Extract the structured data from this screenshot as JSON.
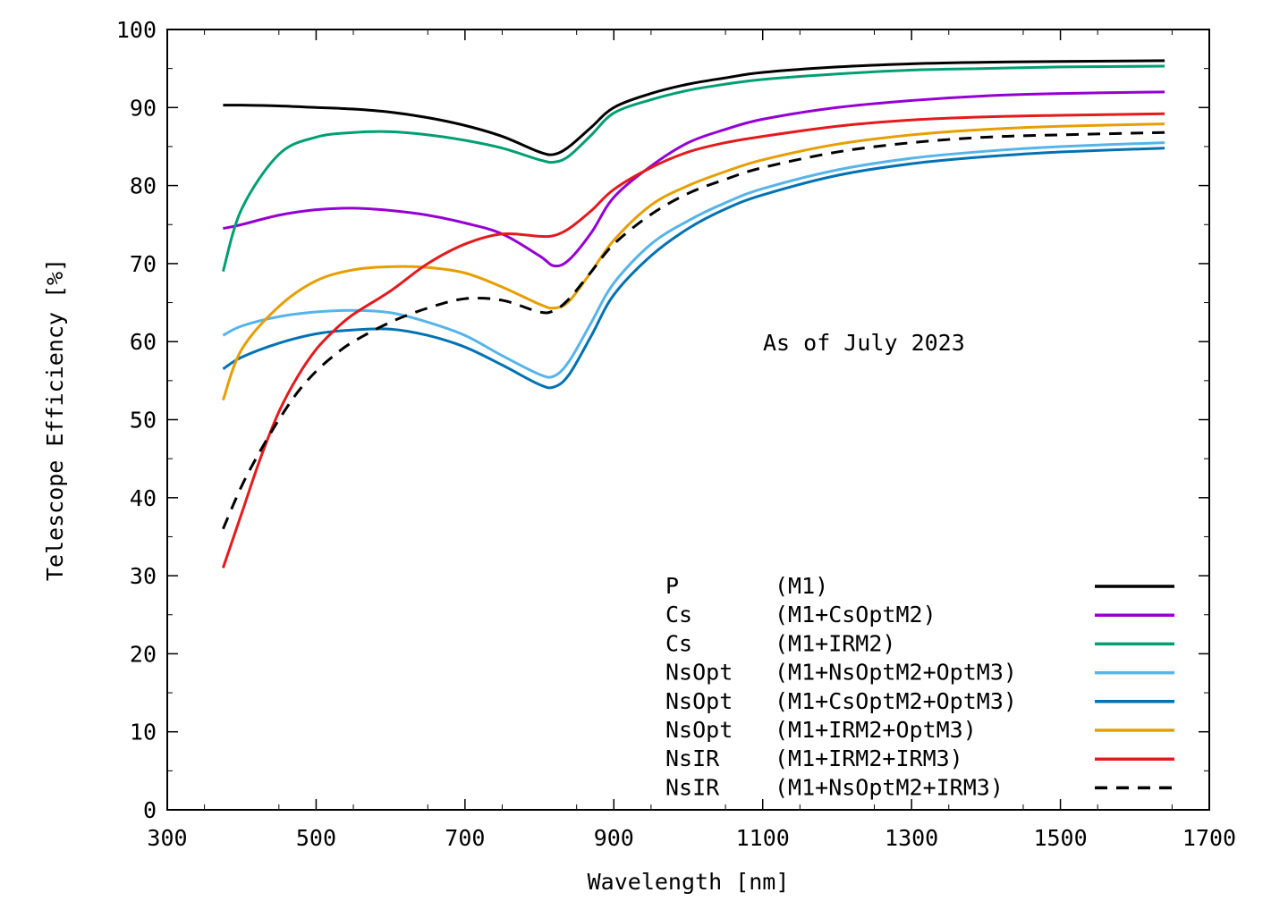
{
  "chart_data": {
    "type": "line",
    "xlabel": "Wavelength [nm]",
    "ylabel": "Telescope Efficiency [%]",
    "xlim": [
      300,
      1700
    ],
    "ylim": [
      0,
      100
    ],
    "xticks": [
      "300",
      "500",
      "700",
      "900",
      "1100",
      "1300",
      "1500",
      "1700"
    ],
    "yticks": [
      "0",
      "10",
      "20",
      "30",
      "40",
      "50",
      "60",
      "70",
      "80",
      "90",
      "100"
    ],
    "annotation": "As of July 2023",
    "legend_position": "bottom-right",
    "grid": false,
    "series": [
      {
        "name": "P",
        "config": "(M1)",
        "color": "#000000",
        "dash": "solid",
        "x": [
          375,
          400,
          450,
          500,
          550,
          600,
          650,
          700,
          750,
          800,
          820,
          840,
          870,
          900,
          950,
          1000,
          1050,
          1100,
          1200,
          1300,
          1400,
          1500,
          1640
        ],
        "y": [
          90.3,
          90.3,
          90.2,
          90.0,
          89.8,
          89.4,
          88.7,
          87.7,
          86.3,
          84.3,
          84.0,
          85.0,
          87.5,
          90.0,
          91.8,
          93.0,
          93.8,
          94.5,
          95.2,
          95.6,
          95.8,
          95.9,
          96.0
        ]
      },
      {
        "name": "Cs",
        "config": "(M1+CsOptM2)",
        "color": "#9400d3",
        "dash": "solid",
        "x": [
          375,
          400,
          450,
          500,
          550,
          600,
          650,
          700,
          750,
          800,
          820,
          840,
          870,
          900,
          950,
          1000,
          1050,
          1100,
          1200,
          1300,
          1400,
          1500,
          1640
        ],
        "y": [
          74.5,
          75.0,
          76.2,
          76.9,
          77.1,
          76.8,
          76.2,
          75.2,
          73.8,
          71.0,
          69.7,
          70.5,
          74.0,
          78.5,
          82.5,
          85.5,
          87.2,
          88.5,
          90.0,
          90.9,
          91.5,
          91.8,
          92.0
        ]
      },
      {
        "name": "Cs",
        "config": "(M1+IRM2)",
        "color": "#009e73",
        "dash": "solid",
        "x": [
          375,
          400,
          450,
          500,
          550,
          600,
          650,
          700,
          750,
          800,
          820,
          840,
          870,
          900,
          950,
          1000,
          1050,
          1100,
          1200,
          1300,
          1400,
          1500,
          1640
        ],
        "y": [
          69.0,
          77.0,
          84.0,
          86.2,
          86.8,
          86.9,
          86.5,
          85.8,
          84.8,
          83.3,
          83.0,
          83.8,
          86.5,
          89.3,
          91.0,
          92.2,
          93.0,
          93.6,
          94.3,
          94.8,
          95.0,
          95.2,
          95.3
        ]
      },
      {
        "name": "NsOpt",
        "config": "(M1+NsOptM2+OptM3)",
        "color": "#56b4e9",
        "dash": "solid",
        "x": [
          375,
          400,
          450,
          500,
          550,
          600,
          650,
          700,
          750,
          800,
          820,
          840,
          870,
          900,
          950,
          1000,
          1050,
          1100,
          1200,
          1300,
          1400,
          1500,
          1640
        ],
        "y": [
          60.8,
          62.0,
          63.2,
          63.8,
          64.0,
          63.7,
          62.5,
          60.8,
          58.2,
          55.8,
          55.6,
          57.5,
          62.5,
          67.5,
          72.5,
          75.5,
          77.8,
          79.6,
          82.0,
          83.5,
          84.4,
          85.0,
          85.5
        ]
      },
      {
        "name": "NsOpt",
        "config": "(M1+CsOptM2+OptM3)",
        "color": "#0072b2",
        "dash": "solid",
        "x": [
          375,
          400,
          450,
          500,
          550,
          600,
          650,
          700,
          750,
          800,
          820,
          840,
          870,
          900,
          950,
          1000,
          1050,
          1100,
          1200,
          1300,
          1400,
          1500,
          1640
        ],
        "y": [
          56.5,
          58.0,
          59.8,
          61.0,
          61.5,
          61.6,
          60.8,
          59.3,
          57.0,
          54.5,
          54.2,
          55.8,
          60.8,
          66.0,
          71.0,
          74.5,
          77.0,
          78.8,
          81.3,
          82.8,
          83.7,
          84.3,
          84.8
        ]
      },
      {
        "name": "NsOpt",
        "config": "(M1+IRM2+OptM3)",
        "color": "#e69f00",
        "dash": "solid",
        "x": [
          375,
          400,
          450,
          500,
          550,
          600,
          650,
          700,
          750,
          800,
          820,
          840,
          870,
          900,
          950,
          1000,
          1050,
          1100,
          1200,
          1300,
          1400,
          1500,
          1640
        ],
        "y": [
          52.5,
          59.0,
          64.5,
          67.8,
          69.2,
          69.6,
          69.5,
          68.8,
          67.0,
          64.8,
          64.3,
          65.2,
          69.0,
          73.0,
          77.5,
          80.0,
          81.8,
          83.3,
          85.3,
          86.5,
          87.2,
          87.6,
          87.9
        ]
      },
      {
        "name": "NsIR",
        "config": "(M1+IRM2+IRM3)",
        "color": "#e41a1c",
        "dash": "solid",
        "x": [
          375,
          400,
          425,
          450,
          475,
          500,
          525,
          550,
          600,
          650,
          700,
          750,
          800,
          820,
          840,
          870,
          900,
          950,
          1000,
          1050,
          1100,
          1200,
          1300,
          1400,
          1500,
          1640
        ],
        "y": [
          31.0,
          38.0,
          45.0,
          51.0,
          55.5,
          59.0,
          61.5,
          63.5,
          66.5,
          70.0,
          72.5,
          73.8,
          73.5,
          73.6,
          74.5,
          76.8,
          79.5,
          82.3,
          84.3,
          85.5,
          86.3,
          87.6,
          88.4,
          88.8,
          89.0,
          89.2
        ]
      },
      {
        "name": "NsIR",
        "config": "(M1+NsOptM2+IRM3)",
        "color": "#000000",
        "dash": "dashed",
        "x": [
          375,
          400,
          425,
          450,
          475,
          500,
          525,
          550,
          600,
          650,
          700,
          750,
          800,
          820,
          840,
          870,
          900,
          950,
          1000,
          1050,
          1100,
          1200,
          1300,
          1400,
          1500,
          1640
        ],
        "y": [
          36.0,
          41.5,
          46.0,
          50.0,
          53.5,
          56.2,
          58.3,
          60.0,
          62.5,
          64.3,
          65.5,
          65.3,
          63.8,
          64.0,
          65.5,
          69.0,
          72.5,
          76.3,
          79.0,
          80.8,
          82.3,
          84.3,
          85.5,
          86.2,
          86.5,
          86.8
        ]
      }
    ]
  }
}
